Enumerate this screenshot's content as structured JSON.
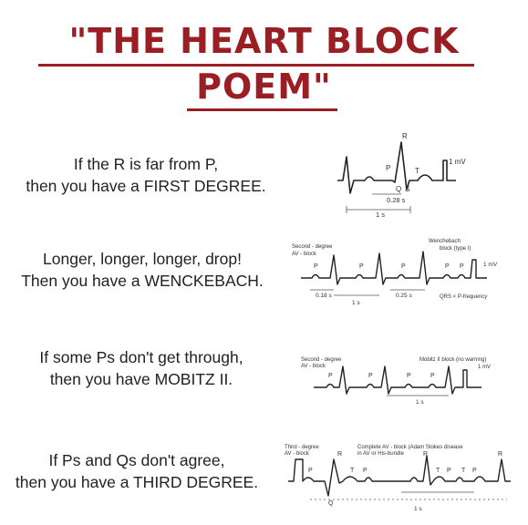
{
  "header": {
    "title_line1": "\"THE HEART BLOCK",
    "title_line2": "POEM\""
  },
  "verses": [
    {
      "line1": "If the R is far from P,",
      "line2": "then you have a FIRST DEGREE."
    },
    {
      "line1": "Longer, longer, longer, drop!",
      "line2": "Then you have a WENCKEBACH."
    },
    {
      "line1": "If some Ps don't get through,",
      "line2": "then you have MOBITZ II."
    },
    {
      "line1": "If Ps and Qs don't agree,",
      "line2": "then you have a THIRD DEGREE."
    }
  ],
  "ecg1": {
    "r": "R",
    "p": "P",
    "t": "T",
    "q": "Q",
    "s": "S",
    "mv": "1 mV",
    "interval": "0.28 s",
    "scale": "1 s"
  },
  "ecg2": {
    "label_a": "Second - degree",
    "label_b": "AV - block",
    "label_c": "Wenchebach",
    "label_d": "block (type I)",
    "p": "P",
    "mv": "1 mV",
    "i1": "0.18 s",
    "i2": "0.25 s",
    "scale": "1 s",
    "note": "QRS < P-frequency"
  },
  "ecg3": {
    "label_a": "Second - degree",
    "label_b": "AV - block",
    "label_c": "Mobitz II block (no warning)",
    "p": "P",
    "mv": "1 mV",
    "scale": "1 s"
  },
  "ecg4": {
    "label_a": "Third - degree",
    "label_b": "AV - block",
    "label_c": "Complete AV - block (Adam Stokes disease",
    "label_d": "in AV or His-bundle",
    "r": "R",
    "p": "P",
    "t": "T",
    "q": "Q",
    "scale": "1 s"
  }
}
